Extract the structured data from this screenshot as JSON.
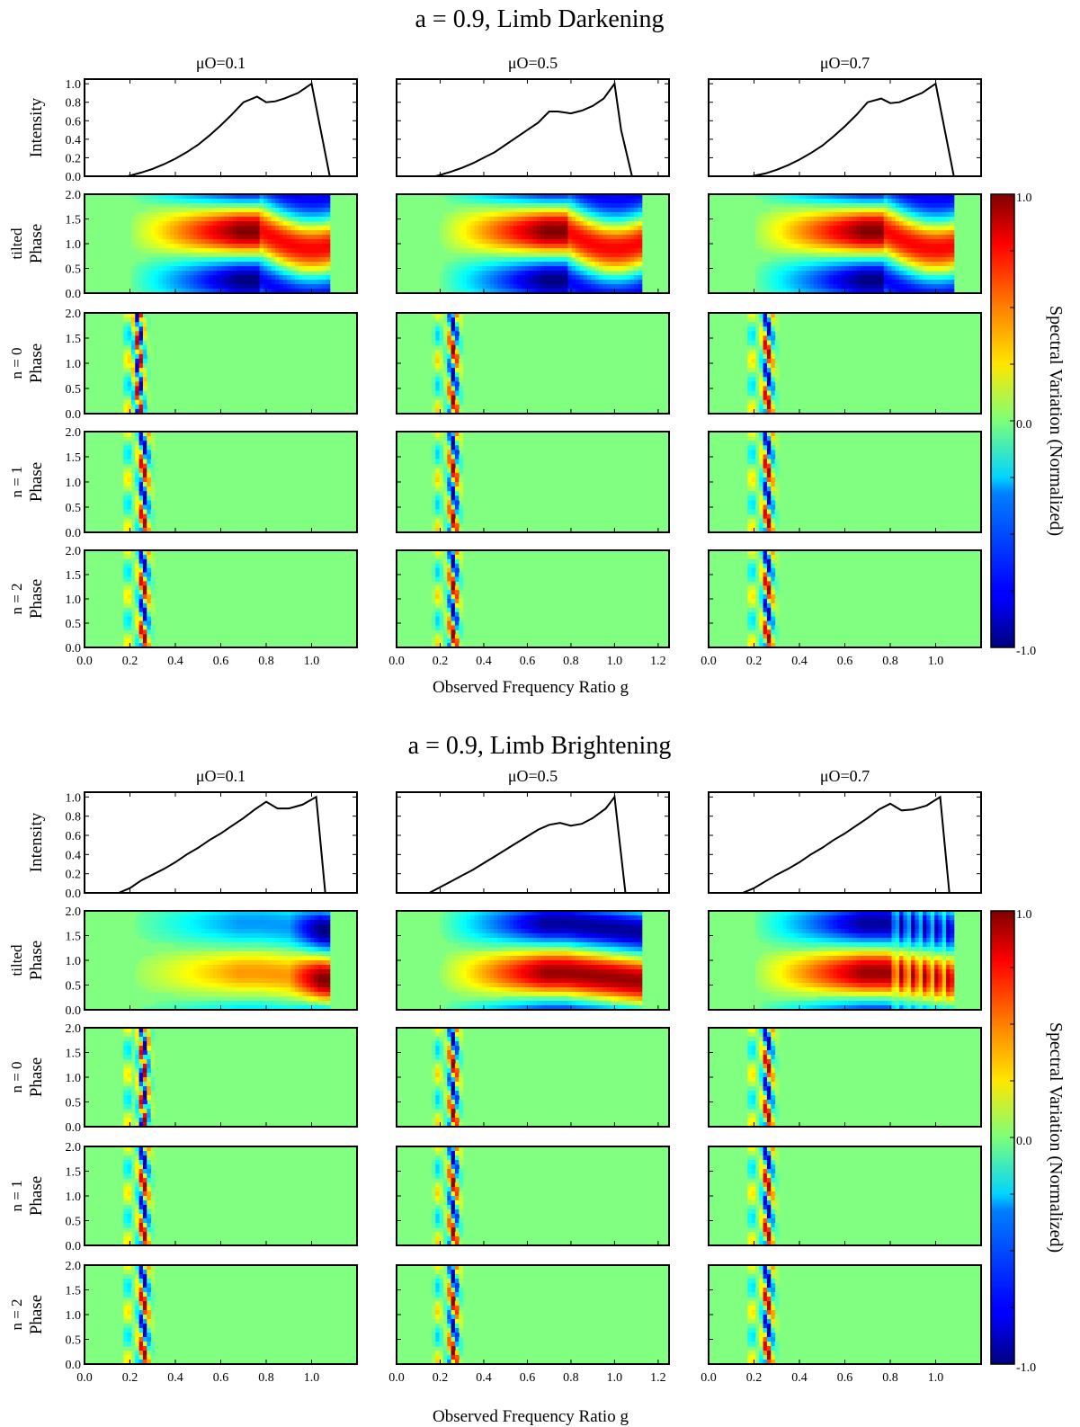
{
  "section_titles": [
    "a = 0.9, Limb Darkening",
    "a = 0.9, Limb Brightening"
  ],
  "column_titles": [
    "μO=0.1",
    "μO=0.5",
    "μO=0.7"
  ],
  "xlabel": "Observed Frequency Ratio g",
  "row_labels": {
    "intensity": {
      "line1": "",
      "line2": "Intensity"
    },
    "tilted": {
      "line1": "tilted",
      "line2": "Phase"
    },
    "n0": {
      "line1": "n = 0",
      "line2": "Phase"
    },
    "n1": {
      "line1": "n = 1",
      "line2": "Phase"
    },
    "n2": {
      "line1": "n = 2",
      "line2": "Phase"
    }
  },
  "colorbar": {
    "label": "Spectral Variation (Normalized)",
    "ticks": [
      "1.0",
      "0.0",
      "-1.0"
    ],
    "colormap": "jet",
    "range": [
      -1.0,
      1.0
    ]
  },
  "chart_data": {
    "type": "heatmap",
    "intensity_yticks": [
      "0.0",
      "0.2",
      "0.4",
      "0.6",
      "0.8",
      "1.0"
    ],
    "phase_yticks": [
      "0.0",
      "0.5",
      "1.0",
      "1.5",
      "2.0"
    ],
    "intensity_ylim": [
      0,
      1.05
    ],
    "phase_ylim": [
      0,
      2
    ],
    "columns": [
      {
        "mu": "μO=0.1",
        "xticks": [
          "0.0",
          "0.2",
          "0.4",
          "0.6",
          "0.8",
          "1.0"
        ],
        "xlim": [
          0,
          1.2
        ]
      },
      {
        "mu": "μO=0.5",
        "xticks": [
          "0.0",
          "0.2",
          "0.4",
          "0.6",
          "0.8",
          "1.0",
          "1.2"
        ],
        "xlim": [
          0,
          1.25
        ]
      },
      {
        "mu": "μO=0.7",
        "xticks": [
          "0.0",
          "0.2",
          "0.4",
          "0.6",
          "0.8",
          "1.0"
        ],
        "xlim": [
          0,
          1.2
        ]
      }
    ],
    "sections": [
      {
        "name": "a = 0.9, Limb Darkening",
        "intensity_profiles": [
          {
            "mu": "μO=0.1",
            "x": [
              0.19,
              0.25,
              0.3,
              0.35,
              0.4,
              0.45,
              0.5,
              0.55,
              0.6,
              0.65,
              0.7,
              0.76,
              0.8,
              0.84,
              0.88,
              0.94,
              1.0,
              1.04,
              1.08
            ],
            "y": [
              0.0,
              0.04,
              0.08,
              0.13,
              0.19,
              0.26,
              0.34,
              0.44,
              0.55,
              0.67,
              0.8,
              0.86,
              0.8,
              0.81,
              0.84,
              0.9,
              1.0,
              0.5,
              0.0
            ]
          },
          {
            "mu": "μO=0.5",
            "x": [
              0.18,
              0.25,
              0.3,
              0.35,
              0.4,
              0.45,
              0.5,
              0.55,
              0.6,
              0.65,
              0.7,
              0.74,
              0.8,
              0.85,
              0.9,
              0.95,
              1.0,
              1.03,
              1.08
            ],
            "y": [
              0.0,
              0.05,
              0.09,
              0.14,
              0.2,
              0.26,
              0.34,
              0.42,
              0.5,
              0.58,
              0.7,
              0.7,
              0.68,
              0.71,
              0.76,
              0.84,
              1.0,
              0.5,
              0.0
            ]
          },
          {
            "mu": "μO=0.7",
            "x": [
              0.19,
              0.25,
              0.3,
              0.35,
              0.4,
              0.45,
              0.5,
              0.55,
              0.6,
              0.65,
              0.7,
              0.76,
              0.8,
              0.84,
              0.88,
              0.94,
              1.0,
              1.04,
              1.08
            ],
            "y": [
              0.0,
              0.03,
              0.07,
              0.12,
              0.18,
              0.25,
              0.33,
              0.43,
              0.54,
              0.66,
              0.8,
              0.84,
              0.79,
              0.8,
              0.84,
              0.9,
              1.0,
              0.5,
              0.0
            ]
          }
        ]
      },
      {
        "name": "a = 0.9, Limb Brightening",
        "intensity_profiles": [
          {
            "mu": "μO=0.1",
            "x": [
              0.15,
              0.2,
              0.25,
              0.3,
              0.35,
              0.4,
              0.45,
              0.5,
              0.55,
              0.6,
              0.65,
              0.7,
              0.75,
              0.8,
              0.85,
              0.9,
              0.96,
              1.02,
              1.06
            ],
            "y": [
              0.0,
              0.05,
              0.13,
              0.19,
              0.25,
              0.32,
              0.4,
              0.47,
              0.55,
              0.62,
              0.7,
              0.78,
              0.87,
              0.95,
              0.88,
              0.88,
              0.92,
              1.0,
              0.0
            ]
          },
          {
            "mu": "μO=0.5",
            "x": [
              0.15,
              0.2,
              0.25,
              0.3,
              0.35,
              0.4,
              0.45,
              0.5,
              0.55,
              0.6,
              0.65,
              0.7,
              0.75,
              0.8,
              0.85,
              0.9,
              0.96,
              1.0,
              1.05
            ],
            "y": [
              0.0,
              0.06,
              0.12,
              0.18,
              0.24,
              0.31,
              0.38,
              0.45,
              0.52,
              0.59,
              0.66,
              0.71,
              0.73,
              0.7,
              0.72,
              0.78,
              0.88,
              1.0,
              0.0
            ]
          },
          {
            "mu": "μO=0.7",
            "x": [
              0.15,
              0.2,
              0.25,
              0.3,
              0.35,
              0.4,
              0.45,
              0.5,
              0.55,
              0.6,
              0.65,
              0.7,
              0.75,
              0.8,
              0.85,
              0.9,
              0.96,
              1.02,
              1.06
            ],
            "y": [
              0.0,
              0.05,
              0.12,
              0.19,
              0.25,
              0.32,
              0.4,
              0.47,
              0.55,
              0.62,
              0.7,
              0.78,
              0.87,
              0.93,
              0.86,
              0.87,
              0.91,
              1.0,
              0.0
            ]
          }
        ]
      }
    ]
  }
}
